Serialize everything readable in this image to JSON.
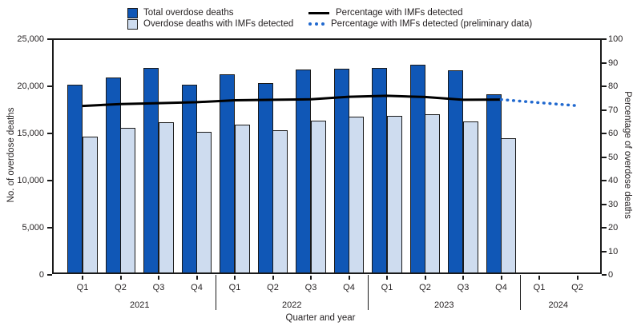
{
  "legend": {
    "total_label": "Total overdose deaths",
    "imf_label": "Overdose deaths with IMFs detected",
    "pct_label": "Percentage with IMFs detected",
    "pct_prelim_label": "Percentage with IMFs detected (preliminary data)"
  },
  "axes": {
    "left_title": "No. of overdose deaths",
    "right_title": "Percentage of overdose deaths",
    "x_title": "Quarter and year",
    "left_ticks": [
      "0",
      "5,000",
      "10,000",
      "15,000",
      "20,000",
      "25,000"
    ],
    "right_ticks": [
      "0",
      "10",
      "20",
      "30",
      "40",
      "50",
      "60",
      "70",
      "80",
      "90",
      "100"
    ]
  },
  "chart_data": {
    "type": "bar",
    "title": "",
    "xlabel": "Quarter and year",
    "left_axis": {
      "label": "No. of overdose deaths",
      "min": 0,
      "max": 25000,
      "step": 5000
    },
    "right_axis": {
      "label": "Percentage of overdose deaths",
      "min": 0,
      "max": 100,
      "step": 10
    },
    "quarters": [
      "Q1",
      "Q2",
      "Q3",
      "Q4",
      "Q1",
      "Q2",
      "Q3",
      "Q4",
      "Q1",
      "Q2",
      "Q3",
      "Q4",
      "Q1",
      "Q2"
    ],
    "year_groups": [
      {
        "label": "2021",
        "count": 4
      },
      {
        "label": "2022",
        "count": 4
      },
      {
        "label": "2023",
        "count": 4
      },
      {
        "label": "2024",
        "count": 2
      }
    ],
    "series": [
      {
        "name": "Total overdose deaths",
        "type": "bar",
        "axis": "left",
        "values": [
          19900,
          20700,
          21700,
          19900,
          21000,
          20100,
          21500,
          21600,
          21700,
          22000,
          21400,
          18900,
          null,
          null
        ]
      },
      {
        "name": "Overdose deaths with IMFs detected",
        "type": "bar",
        "axis": "left",
        "values": [
          14400,
          15300,
          15900,
          14900,
          15700,
          15100,
          16100,
          16500,
          16600,
          16800,
          16000,
          14200,
          null,
          null
        ]
      },
      {
        "name": "Percentage with IMFs detected",
        "type": "line",
        "axis": "right",
        "values": [
          72.0,
          72.8,
          73.2,
          73.6,
          74.4,
          74.6,
          74.8,
          75.9,
          76.3,
          75.8,
          74.6,
          74.7,
          null,
          null
        ]
      },
      {
        "name": "Percentage with IMFs detected (preliminary data)",
        "type": "line-dotted",
        "axis": "right",
        "values": [
          null,
          null,
          null,
          null,
          null,
          null,
          null,
          null,
          null,
          null,
          null,
          74.7,
          73.4,
          72.1
        ]
      }
    ],
    "legend_position": "top",
    "grid": false
  },
  "colors": {
    "total_bar": "#1057b6",
    "imf_bar": "#cedcef",
    "bar_outline": "#1a1a1a",
    "pct_line": "#000000",
    "prelim_line": "#2169cf",
    "text": "#231f20"
  }
}
